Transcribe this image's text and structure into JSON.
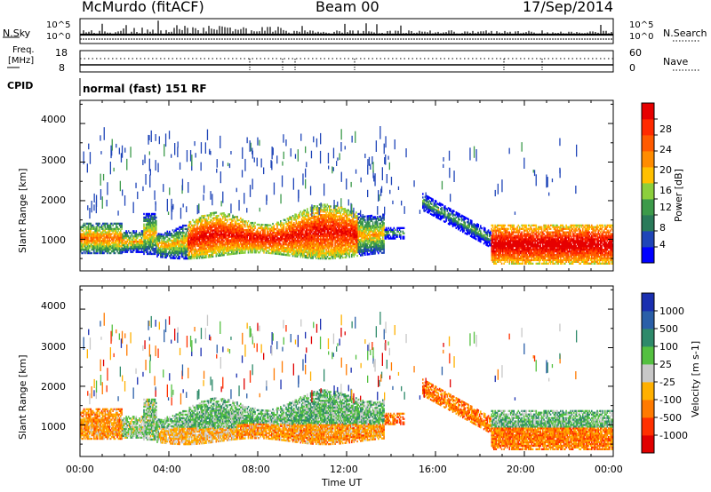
{
  "header": {
    "station": "McMurdo (fitACF)",
    "beam": "Beam 00",
    "date": "17/Sep/2014"
  },
  "summary_panel": {
    "nsky_label": "N.Sky",
    "nsearch_label": "N.Search",
    "log_top": "10^5",
    "log_bottom": "10^0",
    "freq_label_1": "Freq.",
    "freq_label_2": "[MHz]",
    "freq_ticks": [
      "18",
      "8"
    ],
    "nave_label": "Nave",
    "nave_ticks": [
      "60",
      "0"
    ],
    "cpid_label": "CPID",
    "mode_text": "normal (fast) 151 RF"
  },
  "chart_data": [
    {
      "type": "heatmap",
      "name": "power-panel",
      "xlabel": "Time UT",
      "ylabel": "Slant Range [km]",
      "x_ticks": [
        "00:00",
        "04:00",
        "08:00",
        "12:00",
        "16:00",
        "20:00",
        "00:00"
      ],
      "x_range_hours": [
        0,
        24
      ],
      "y_ticks": [
        1000,
        2000,
        3000,
        4000
      ],
      "ylim": [
        180,
        4600
      ],
      "colorbar": {
        "label": "Power [dB]",
        "ticks": [
          "28",
          "24",
          "20",
          "16",
          "12",
          "8",
          "4"
        ],
        "colors": [
          "#0000ff",
          "#1f45b8",
          "#2a7a5a",
          "#3c9a4a",
          "#8ccf3c",
          "#ffc000",
          "#ff8c00",
          "#ff5a00",
          "#ff2a00",
          "#e60000"
        ]
      },
      "bands": [
        {
          "t0": 0.0,
          "t1": 1.8,
          "r0": 600,
          "r1": 1400,
          "level": "mixed"
        },
        {
          "t0": 2.8,
          "t1": 13.5,
          "r0": 550,
          "r1": 1600,
          "level": "high"
        },
        {
          "t0": 16.5,
          "t1": 24.0,
          "r0": 350,
          "r1": 1350,
          "level": "high"
        }
      ]
    },
    {
      "type": "heatmap",
      "name": "velocity-panel",
      "xlabel": "Time UT",
      "ylabel": "Slant Range [km]",
      "x_ticks": [
        "00:00",
        "04:00",
        "08:00",
        "12:00",
        "16:00",
        "20:00",
        "00:00"
      ],
      "x_range_hours": [
        0,
        24
      ],
      "y_ticks": [
        1000,
        2000,
        3000,
        4000
      ],
      "ylim": [
        180,
        4600
      ],
      "colorbar": {
        "label": "Velocity [m s-1]",
        "ticks": [
          "1000",
          "500",
          "100",
          "25",
          "-25",
          "-100",
          "-500",
          "-1000"
        ],
        "colors": [
          "#1a2fb0",
          "#2a5fa8",
          "#2e8a6a",
          "#54c040",
          "#c8c8c8",
          "#ffb000",
          "#ff7a00",
          "#ff3000",
          "#e00000"
        ]
      }
    }
  ]
}
